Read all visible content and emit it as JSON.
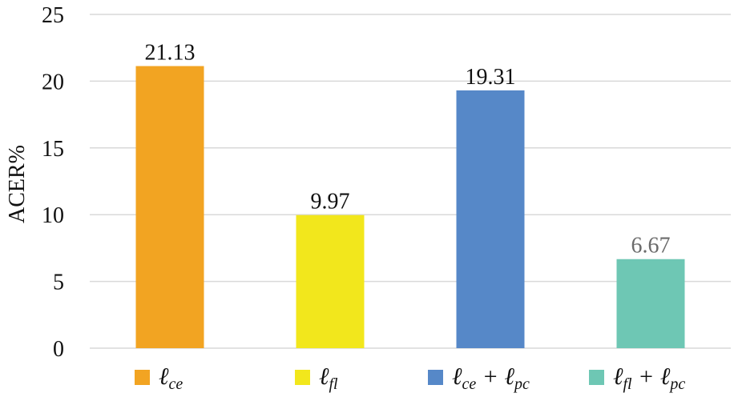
{
  "chart_data": {
    "type": "bar",
    "categories": [
      "ℓ_ce",
      "ℓ_fl",
      "ℓ_ce + ℓ_pc",
      "ℓ_fl + ℓ_pc"
    ],
    "values": [
      21.13,
      9.97,
      19.31,
      6.67
    ],
    "value_labels": [
      "21.13",
      "9.97",
      "19.31",
      "6.67"
    ],
    "colors": [
      "#F2A422",
      "#F2E71C",
      "#5688C8",
      "#6EC7B4"
    ],
    "ylabel": "ACER%",
    "ylim": [
      0,
      25
    ],
    "yticks": [
      "0",
      "5",
      "10",
      "15",
      "20",
      "25"
    ],
    "grid": true,
    "legend_placement": "bottom",
    "legend": [
      {
        "main": "ℓ",
        "sub": "ce",
        "rest": []
      },
      {
        "main": "ℓ",
        "sub": "fl",
        "rest": []
      },
      {
        "main": "ℓ",
        "sub": "ce",
        "rest": [
          {
            "op": " + ",
            "main": "ℓ",
            "sub": "pc"
          }
        ]
      },
      {
        "main": "ℓ",
        "sub": "fl",
        "rest": [
          {
            "op": " + ",
            "main": "ℓ",
            "sub": "pc"
          }
        ]
      }
    ]
  }
}
